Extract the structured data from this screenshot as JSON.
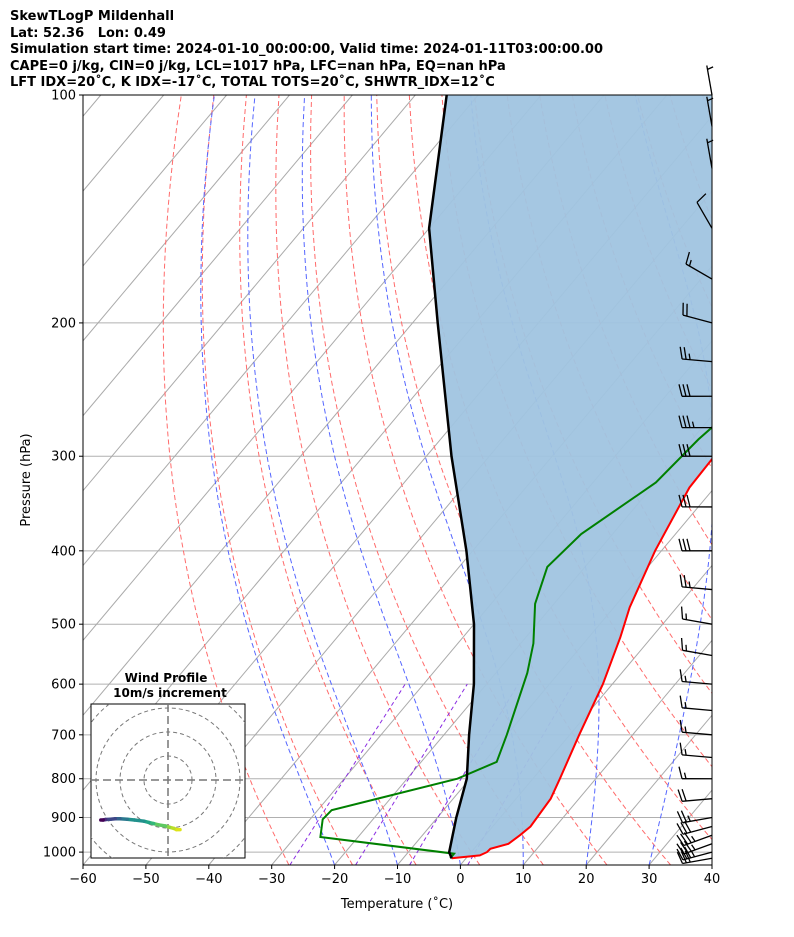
{
  "header": {
    "line1": "SkewTLogP Mildenhall",
    "line2": "Lat: 52.36   Lon: 0.49",
    "line3": "Simulation start time: 2024-01-10_00:00:00, Valid time: 2024-01-11T03:00:00.00",
    "line4": "CAPE=0 j/kg, CIN=0 j/kg, LCL=1017 hPa, LFC=nan hPa, EQ=nan hPa",
    "line5": "LFT IDX=20˚C, K IDX=-17˚C, TOTAL TOTS=20˚C, SHWTR_IDX=12˚C"
  },
  "chart_data": {
    "type": "skew-t log-p",
    "xlabel": "Temperature (˚C)",
    "ylabel": "Pressure (hPa)",
    "xlim": [
      -60,
      40
    ],
    "ylim": [
      1040,
      100
    ],
    "x_ticks": [
      "−60",
      "−50",
      "−40",
      "−30",
      "−20",
      "−10",
      "0",
      "10",
      "20",
      "30",
      "40"
    ],
    "x_tick_values": [
      -60,
      -50,
      -40,
      -30,
      -20,
      -10,
      0,
      10,
      20,
      30,
      40
    ],
    "y_ticks": [
      "100",
      "200",
      "300",
      "400",
      "500",
      "600",
      "700",
      "800",
      "900",
      "1000"
    ],
    "y_tick_values": [
      100,
      200,
      300,
      400,
      500,
      600,
      700,
      800,
      900,
      1000
    ],
    "grid": true,
    "colors": {
      "temperature": "#ff0000",
      "dewpoint": "#008000",
      "parcel": "#000000",
      "shading": "#a0c4e0",
      "isotherm": "#aaaaaa",
      "dry_adiabat": "#ff6b6b",
      "moist_adiabat": "#5566ff",
      "mixing_ratio": "#8a2be2"
    },
    "series": [
      {
        "key": "temperature",
        "points": [
          [
            -2.3,
            1019
          ],
          [
            1.8,
            1010
          ],
          [
            2.5,
            1000
          ],
          [
            2.6,
            990
          ],
          [
            4.8,
            975
          ],
          [
            5.5,
            950
          ],
          [
            6.0,
            925
          ],
          [
            5.5,
            850
          ],
          [
            4.3,
            800
          ],
          [
            1.5,
            700
          ],
          [
            -1.5,
            600
          ],
          [
            -5,
            520
          ],
          [
            -7.5,
            475
          ],
          [
            -11,
            400
          ],
          [
            -14,
            330
          ],
          [
            -14.5,
            270
          ],
          [
            -12.5,
            245
          ],
          [
            -7,
            205
          ],
          [
            -1.5,
            170
          ],
          [
            0.5,
            155
          ],
          [
            5,
            130
          ],
          [
            7,
            115
          ],
          [
            9,
            105
          ],
          [
            10,
            100
          ]
        ]
      },
      {
        "key": "dewpoint",
        "points": [
          [
            -2.5,
            1019
          ],
          [
            -2.5,
            1005
          ],
          [
            -26,
            955
          ],
          [
            -28,
            905
          ],
          [
            -27.8,
            880
          ],
          [
            -12,
            800
          ],
          [
            -8,
            760
          ],
          [
            -10,
            700
          ],
          [
            -15,
            580
          ],
          [
            -18,
            530
          ],
          [
            -23,
            470
          ],
          [
            -26,
            420
          ],
          [
            -25,
            380
          ],
          [
            -20,
            325
          ],
          [
            -19,
            285
          ],
          [
            -17,
            250
          ],
          [
            -13,
            215
          ],
          [
            -10,
            195
          ],
          [
            -9,
            175
          ],
          [
            -10,
            155
          ],
          [
            -2,
            120
          ],
          [
            3,
            105
          ],
          [
            6,
            100
          ]
        ]
      },
      {
        "key": "parcel",
        "points": [
          [
            -2.3,
            1019
          ],
          [
            -3.5,
            1000
          ],
          [
            -7,
            900
          ],
          [
            -10.5,
            800
          ],
          [
            -16,
            700
          ],
          [
            -22,
            600
          ],
          [
            -30,
            500
          ],
          [
            -41,
            400
          ],
          [
            -56,
            300
          ],
          [
            -76,
            200
          ],
          [
            -90,
            150
          ],
          [
            -105,
            100
          ]
        ]
      }
    ],
    "shaded_region": "area between parcel and temperature (CIN)",
    "wind_barbs": [
      {
        "p": 1019,
        "speed_kt": 30,
        "dir": 260
      },
      {
        "p": 1000,
        "speed_kt": 35,
        "dir": 255
      },
      {
        "p": 975,
        "speed_kt": 35,
        "dir": 250
      },
      {
        "p": 950,
        "speed_kt": 35,
        "dir": 250
      },
      {
        "p": 925,
        "speed_kt": 30,
        "dir": 255
      },
      {
        "p": 900,
        "speed_kt": 25,
        "dir": 260
      },
      {
        "p": 850,
        "speed_kt": 20,
        "dir": 265
      },
      {
        "p": 800,
        "speed_kt": 15,
        "dir": 270
      },
      {
        "p": 750,
        "speed_kt": 15,
        "dir": 275
      },
      {
        "p": 700,
        "speed_kt": 15,
        "dir": 275
      },
      {
        "p": 650,
        "speed_kt": 15,
        "dir": 275
      },
      {
        "p": 600,
        "speed_kt": 15,
        "dir": 275
      },
      {
        "p": 550,
        "speed_kt": 15,
        "dir": 280
      },
      {
        "p": 500,
        "speed_kt": 15,
        "dir": 280
      },
      {
        "p": 450,
        "speed_kt": 25,
        "dir": 275
      },
      {
        "p": 400,
        "speed_kt": 30,
        "dir": 270
      },
      {
        "p": 350,
        "speed_kt": 30,
        "dir": 270
      },
      {
        "p": 300,
        "speed_kt": 30,
        "dir": 270
      },
      {
        "p": 275,
        "speed_kt": 35,
        "dir": 270
      },
      {
        "p": 250,
        "speed_kt": 30,
        "dir": 270
      },
      {
        "p": 225,
        "speed_kt": 25,
        "dir": 275
      },
      {
        "p": 200,
        "speed_kt": 20,
        "dir": 285
      },
      {
        "p": 175,
        "speed_kt": 15,
        "dir": 300
      },
      {
        "p": 150,
        "speed_kt": 10,
        "dir": 330
      },
      {
        "p": 125,
        "speed_kt": 5,
        "dir": 350
      },
      {
        "p": 110,
        "speed_kt": 5,
        "dir": 350
      },
      {
        "p": 100,
        "speed_kt": 5,
        "dir": 350
      }
    ],
    "hodograph": {
      "title": "Wind Profile",
      "subtitle": "10m/s increment",
      "rings_ms": [
        10,
        20,
        30,
        40
      ],
      "points": [
        [
          5,
          -4
        ],
        [
          3.5,
          -4
        ],
        [
          2.5,
          -3.5
        ],
        [
          0.5,
          -3
        ],
        [
          -1,
          -2.5
        ],
        [
          -4,
          -2
        ],
        [
          -6,
          -1.5
        ],
        [
          -8,
          -1
        ],
        [
          -10,
          -0.5
        ],
        [
          -14,
          0
        ],
        [
          -17,
          0.3
        ],
        [
          -20,
          0.5
        ],
        [
          -22,
          0.5
        ],
        [
          -24,
          0.3
        ],
        [
          -26,
          0.2
        ],
        [
          -27,
          0
        ],
        [
          -28,
          0
        ]
      ]
    }
  }
}
